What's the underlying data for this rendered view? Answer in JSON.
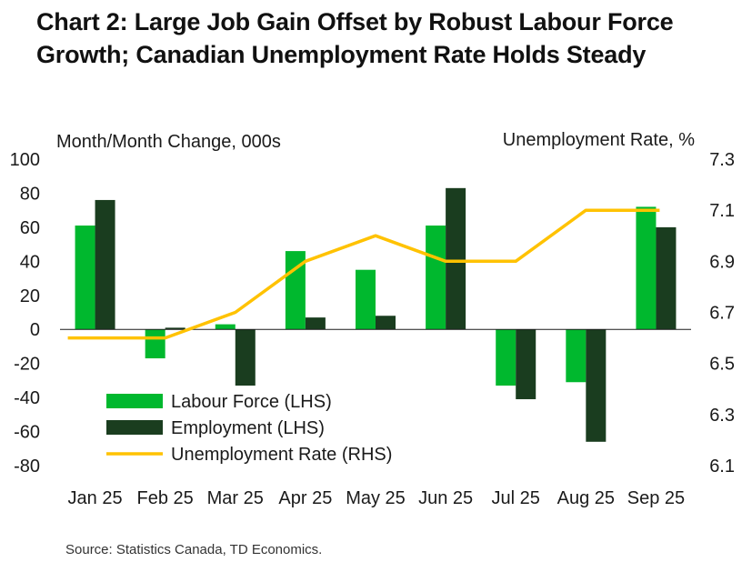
{
  "title": "Chart 2: Large Job Gain Offset by Robust Labour Force Growth; Canadian Unemployment Rate Holds Steady",
  "source": "Source: Statistics Canada, TD Economics.",
  "colors": {
    "labour_force": "#00b82e",
    "employment": "#1a3d1f",
    "unemployment_rate": "#ffc200"
  },
  "chart_data": {
    "type": "bar",
    "categories": [
      "Jan 25",
      "Feb 25",
      "Mar 25",
      "Apr 25",
      "May 25",
      "Jun 25",
      "Jul 25",
      "Aug 25",
      "Sep 25"
    ],
    "series": [
      {
        "name": "Labour Force (LHS)",
        "type": "bar",
        "axis": "left",
        "values": [
          61,
          -17,
          3,
          46,
          35,
          61,
          -33,
          -31,
          72
        ]
      },
      {
        "name": "Employment (LHS)",
        "type": "bar",
        "axis": "left",
        "values": [
          76,
          1,
          -33,
          7,
          8,
          83,
          -41,
          -66,
          60
        ]
      },
      {
        "name": "Unemployment Rate (RHS)",
        "type": "line",
        "axis": "right",
        "values": [
          6.6,
          6.6,
          6.7,
          6.9,
          7.0,
          6.9,
          6.9,
          7.1,
          7.1
        ]
      }
    ],
    "left_axis": {
      "label": "Month/Month Change, 000s",
      "range": [
        -80,
        100
      ],
      "ticks": [
        "100",
        "80",
        "60",
        "40",
        "20",
        "0",
        "-20",
        "-40",
        "-60",
        "-80"
      ]
    },
    "right_axis": {
      "label": "Unemployment Rate, %",
      "range": [
        6.1,
        7.3
      ],
      "ticks": [
        "7.3",
        "7.1",
        "6.9",
        "6.7",
        "6.5",
        "6.3",
        "6.1"
      ]
    },
    "legend": [
      "Labour Force (LHS)",
      "Employment (LHS)",
      "Unemployment Rate (RHS)"
    ],
    "legend_position": "bottom-left",
    "grid": false
  }
}
